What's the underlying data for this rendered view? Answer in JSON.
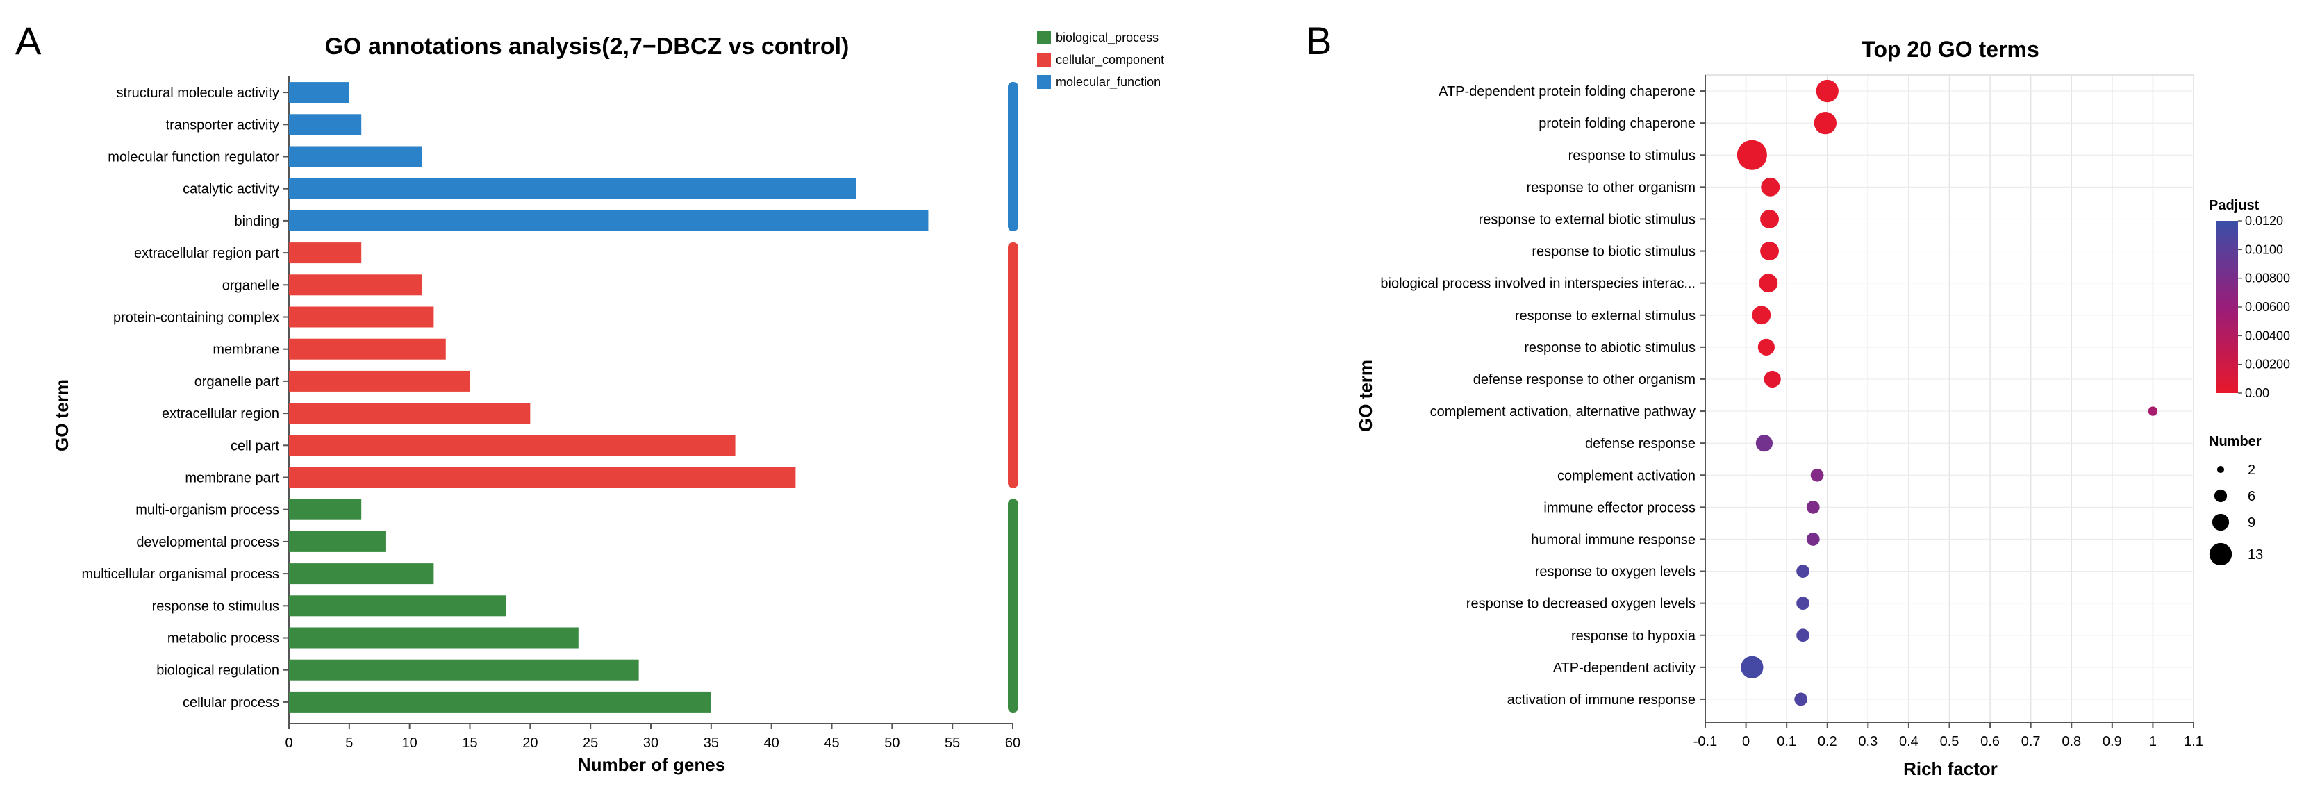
{
  "panel_a": {
    "letter": "A",
    "colors": {
      "biological_process": "#3a8a41",
      "cellular_component": "#e8423c",
      "molecular_function": "#2b82c9"
    }
  },
  "panel_b": {
    "letter": "B",
    "colors": {
      "low": "#e8182b",
      "mid": "#9a1d7a",
      "high": "#3a4fa8"
    }
  },
  "chart_data": [
    {
      "type": "bar",
      "orientation": "horizontal",
      "title": "GO annotations analysis(2,7−DBCZ vs control)",
      "xlabel": "Number of genes",
      "ylabel": "GO term",
      "xlim": [
        0,
        60
      ],
      "xticks": [
        "0",
        "5",
        "10",
        "15",
        "20",
        "25",
        "30",
        "35",
        "40",
        "45",
        "50",
        "55",
        "60"
      ],
      "legend": {
        "position": "top-right",
        "entries": [
          "biological_process",
          "cellular_component",
          "molecular_function"
        ]
      },
      "categories": [
        "structural molecule activity",
        "transporter activity",
        "molecular function regulator",
        "catalytic activity",
        "binding",
        "extracellular region part",
        "organelle",
        "protein-containing complex",
        "membrane",
        "organelle part",
        "extracellular region",
        "cell part",
        "membrane part",
        "multi-organism process",
        "developmental process",
        "multicellular organismal process",
        "response to stimulus",
        "metabolic process",
        "biological regulation",
        "cellular process"
      ],
      "groups": [
        "molecular_function",
        "molecular_function",
        "molecular_function",
        "molecular_function",
        "molecular_function",
        "cellular_component",
        "cellular_component",
        "cellular_component",
        "cellular_component",
        "cellular_component",
        "cellular_component",
        "cellular_component",
        "cellular_component",
        "biological_process",
        "biological_process",
        "biological_process",
        "biological_process",
        "biological_process",
        "biological_process",
        "biological_process"
      ],
      "values": [
        5,
        6,
        11,
        47,
        53,
        6,
        11,
        12,
        13,
        15,
        20,
        37,
        42,
        6,
        8,
        12,
        18,
        24,
        29,
        35
      ]
    },
    {
      "type": "scatter",
      "title": "Top 20 GO terms",
      "xlabel": "Rich factor",
      "ylabel": "GO term",
      "xlim": [
        -0.1,
        1.1
      ],
      "xticks": [
        "-0.1",
        "0",
        "0.1",
        "0.2",
        "0.3",
        "0.4",
        "0.5",
        "0.6",
        "0.7",
        "0.8",
        "0.9",
        "1",
        "1.1"
      ],
      "grid": true,
      "terms": [
        "ATP-dependent protein folding chaperone",
        "protein folding chaperone",
        "response to stimulus",
        "response to other organism",
        "response to external biotic stimulus",
        "response to biotic stimulus",
        "biological process involved in interspecies interac...",
        "response to external stimulus",
        "response to abiotic stimulus",
        "defense response to other organism",
        "complement activation, alternative pathway",
        "defense response",
        "complement activation",
        "immune effector process",
        "humoral immune response",
        "response to oxygen levels",
        "response to decreased oxygen levels",
        "response to hypoxia",
        "ATP-dependent activity",
        "activation of immune response"
      ],
      "rich_factor": [
        0.2,
        0.195,
        0.015,
        0.06,
        0.058,
        0.058,
        0.055,
        0.038,
        0.05,
        0.065,
        1.0,
        0.045,
        0.175,
        0.165,
        0.165,
        0.14,
        0.14,
        0.14,
        0.015,
        0.135
      ],
      "number": [
        9,
        9,
        13,
        7,
        7,
        7,
        7,
        7,
        6,
        6,
        2,
        6,
        4,
        4,
        4,
        4,
        4,
        4,
        9,
        4
      ],
      "padjust": [
        0.0001,
        0.0001,
        0.0001,
        0.0002,
        0.0002,
        0.0002,
        0.0002,
        0.0002,
        0.0002,
        0.0004,
        0.005,
        0.0085,
        0.0075,
        0.0078,
        0.0082,
        0.0108,
        0.0108,
        0.0108,
        0.0113,
        0.0108
      ],
      "color_legend": {
        "title": "Padjust",
        "range": [
          0.0,
          0.012
        ],
        "ticks": [
          "0.0120",
          "0.0100",
          "0.00800",
          "0.00600",
          "0.00400",
          "0.00200",
          "0.00"
        ]
      },
      "size_legend": {
        "title": "Number",
        "values": [
          2,
          6,
          9,
          13
        ]
      }
    }
  ]
}
